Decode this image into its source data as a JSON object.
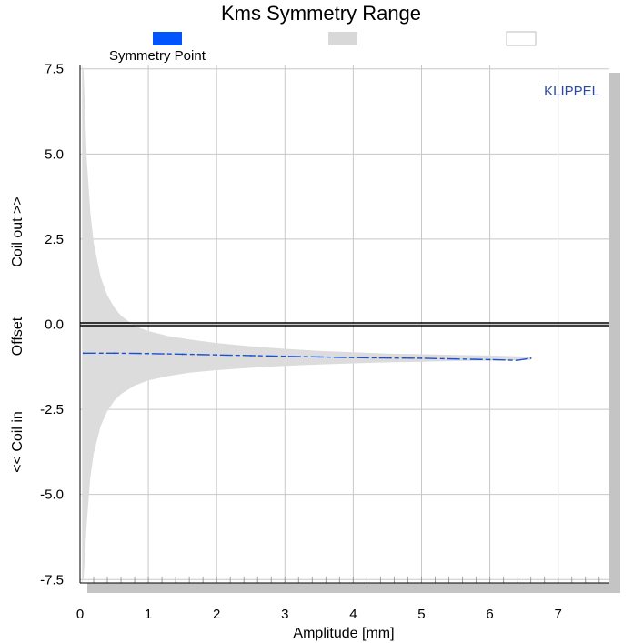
{
  "chart_data": {
    "type": "line",
    "title": "Kms Symmetry Range",
    "xlabel": "Amplitude [mm]",
    "ylabel_parts": [
      "<< Coil in",
      "Offset",
      "Coil out >>"
    ],
    "xlim": [
      0,
      7.75
    ],
    "ylim": [
      -7.6,
      7.6
    ],
    "xticks": [
      "0",
      "1",
      "2",
      "3",
      "4",
      "5",
      "6",
      "7"
    ],
    "xtick_values": [
      0,
      1,
      2,
      3,
      4,
      5,
      6,
      7
    ],
    "yticks": [
      "7.5",
      "5.0",
      "2.5",
      "0.0",
      "-2.5",
      "-5.0",
      "-7.5"
    ],
    "ytick_values": [
      7.5,
      5.0,
      2.5,
      0.0,
      -2.5,
      -5.0,
      -7.5
    ],
    "grid": true,
    "watermark": "KLIPPEL",
    "watermark_color": "#2a4aa0",
    "legend": [
      {
        "label": "Symmetry Point",
        "color": "#0055ff"
      },
      {
        "label": "",
        "color": "#d8d8d8"
      },
      {
        "label": "",
        "color": "#ffffff"
      }
    ],
    "series": [
      {
        "name": "Symmetry Point",
        "color": "#1a4fd6",
        "x": [
          0.05,
          0.5,
          1.0,
          1.5,
          2.0,
          2.5,
          3.0,
          3.5,
          4.0,
          4.5,
          5.0,
          5.5,
          6.0,
          6.4,
          6.6
        ],
        "y": [
          -0.85,
          -0.85,
          -0.86,
          -0.88,
          -0.9,
          -0.92,
          -0.94,
          -0.96,
          -0.98,
          -0.99,
          -1.0,
          -1.02,
          -1.04,
          -1.06,
          -1.0
        ]
      }
    ],
    "range_band": {
      "color": "#dcdcdc",
      "x": [
        0.03,
        0.05,
        0.1,
        0.15,
        0.2,
        0.3,
        0.4,
        0.5,
        0.6,
        0.8,
        1.0,
        1.3,
        1.6,
        2.0,
        2.5,
        3.0,
        3.5,
        4.0,
        4.5,
        5.0,
        5.5,
        6.0,
        6.6
      ],
      "upper": [
        7.6,
        7.5,
        4.8,
        3.3,
        2.4,
        1.4,
        0.85,
        0.5,
        0.25,
        -0.05,
        -0.2,
        -0.35,
        -0.45,
        -0.55,
        -0.65,
        -0.72,
        -0.78,
        -0.82,
        -0.86,
        -0.88,
        -0.9,
        -0.92,
        -0.95
      ],
      "lower": [
        -7.6,
        -7.5,
        -5.8,
        -4.5,
        -3.8,
        -3.0,
        -2.55,
        -2.25,
        -2.05,
        -1.8,
        -1.65,
        -1.52,
        -1.42,
        -1.35,
        -1.28,
        -1.22,
        -1.18,
        -1.15,
        -1.12,
        -1.1,
        -1.08,
        -1.07,
        -1.05
      ]
    },
    "reference_line": {
      "y": 0.0,
      "color": "#000000"
    }
  }
}
